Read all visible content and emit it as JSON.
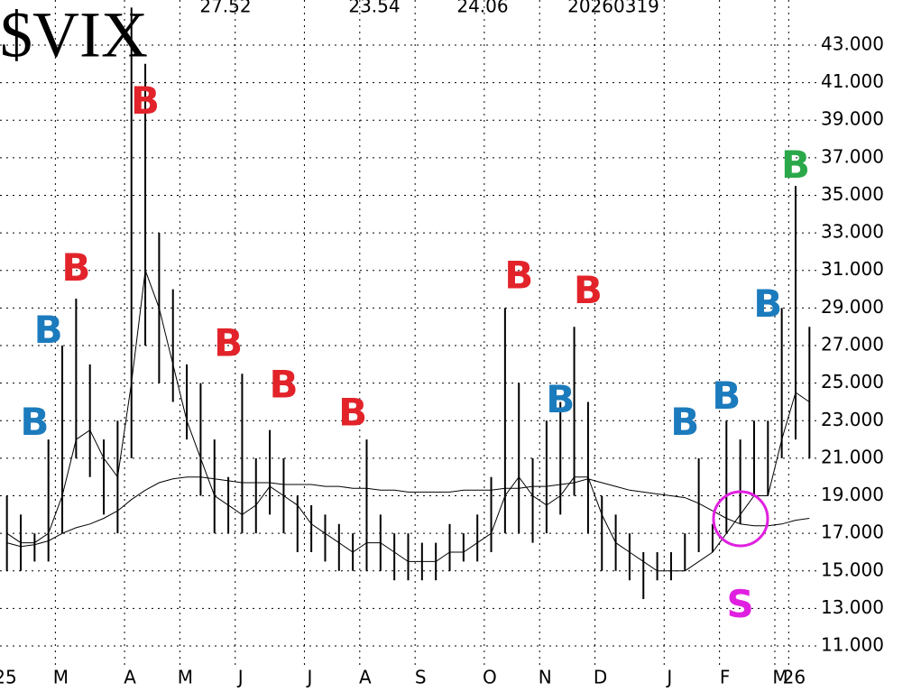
{
  "chart_data": {
    "type": "hilo",
    "title": "$VIX",
    "header": [
      "27.52",
      "23.54",
      "24.06",
      "20260319"
    ],
    "categories": [
      "25",
      null,
      null,
      null,
      "M",
      null,
      null,
      null,
      null,
      "A",
      null,
      null,
      null,
      "M",
      null,
      null,
      null,
      "J",
      null,
      null,
      null,
      null,
      "J",
      null,
      null,
      null,
      "A",
      null,
      null,
      null,
      "S",
      null,
      null,
      null,
      null,
      "O",
      null,
      null,
      null,
      "N",
      null,
      null,
      null,
      "D",
      null,
      null,
      null,
      null,
      "J",
      null,
      null,
      null,
      "F",
      null,
      null,
      null,
      "M",
      "26",
      null
    ],
    "high": [
      19,
      18,
      17,
      22,
      27,
      29.5,
      26,
      22,
      23,
      45,
      42,
      33,
      30,
      26,
      25,
      22,
      20,
      25.5,
      21,
      22.5,
      21,
      19,
      18.5,
      18,
      17.5,
      17,
      22,
      18,
      17,
      17,
      16.5,
      16.5,
      17.5,
      17,
      18,
      20,
      29,
      25,
      21,
      23,
      24,
      28,
      24,
      19,
      18,
      17,
      16,
      16,
      16,
      17,
      21,
      17.5,
      23,
      22,
      23,
      23,
      29,
      35.5,
      28
    ],
    "low": [
      15,
      15,
      15.5,
      15.5,
      17,
      21,
      20,
      18,
      17,
      21,
      27,
      25,
      24,
      22,
      19,
      17,
      17,
      17,
      17,
      18,
      17,
      16,
      16,
      15.5,
      15,
      15,
      15,
      15,
      14.5,
      14.5,
      14.5,
      14.5,
      15,
      15.5,
      15.5,
      16,
      17,
      17,
      16.5,
      17,
      18,
      19,
      17,
      15,
      15,
      14.5,
      13.5,
      14.5,
      14.5,
      15,
      16,
      16,
      17,
      17.5,
      19,
      19,
      21,
      22,
      21
    ],
    "lines": [
      {
        "values": [
          17,
          16.5,
          16.5,
          17,
          19,
          22,
          22.5,
          21,
          20,
          25,
          31,
          29,
          26,
          23,
          21,
          19,
          18.5,
          18,
          18.5,
          19.5,
          19,
          18.5,
          17.5,
          17,
          16.5,
          16,
          16.5,
          16.5,
          16,
          15.5,
          15.5,
          15.5,
          16,
          16,
          16.5,
          17,
          19,
          20,
          19,
          18.5,
          19,
          20,
          20,
          18,
          16.5,
          16,
          15.5,
          15,
          15,
          15,
          15.5,
          16,
          17,
          18,
          19,
          19,
          22,
          24.5,
          24
        ]
      },
      {
        "values": [
          16.5,
          16.3,
          16.4,
          16.6,
          17,
          17.3,
          17.5,
          17.8,
          18.2,
          18.8,
          19.3,
          19.7,
          19.9,
          20,
          20,
          19.9,
          19.8,
          19.7,
          19.7,
          19.7,
          19.6,
          19.6,
          19.6,
          19.5,
          19.5,
          19.4,
          19.4,
          19.3,
          19.3,
          19.2,
          19.2,
          19.2,
          19.2,
          19.3,
          19.3,
          19.3,
          19.4,
          19.4,
          19.5,
          19.5,
          19.6,
          19.7,
          19.9,
          19.7,
          19.5,
          19.3,
          19.2,
          19.1,
          19,
          18.9,
          18.6,
          18.2,
          17.8,
          17.5,
          17.4,
          17.4,
          17.5,
          17.7,
          17.8
        ]
      }
    ],
    "ylim": [
      9.85,
      45.4
    ],
    "yticks": [
      {
        "value": 11,
        "label": "11.000"
      },
      {
        "value": 13,
        "label": "13.000"
      },
      {
        "value": 15,
        "label": "15.000"
      },
      {
        "value": 17,
        "label": "17.000"
      },
      {
        "value": 19,
        "label": "19.000"
      },
      {
        "value": 21,
        "label": "21.000"
      },
      {
        "value": 23,
        "label": "23.000"
      },
      {
        "value": 25,
        "label": "25.000"
      },
      {
        "value": 27,
        "label": "27.000"
      },
      {
        "value": 29,
        "label": "29.000"
      },
      {
        "value": 31,
        "label": "31.000"
      },
      {
        "value": 33,
        "label": "33.000"
      },
      {
        "value": 35,
        "label": "35.000"
      },
      {
        "value": 37,
        "label": "37.000"
      },
      {
        "value": 39,
        "label": "39.000"
      },
      {
        "value": 41,
        "label": "41.000"
      },
      {
        "value": 43,
        "label": "43.000"
      }
    ],
    "grid": true,
    "annotations": [
      {
        "text": "B",
        "color": "#1b7bbd",
        "at": 2,
        "y": 22.8
      },
      {
        "text": "B",
        "color": "#1b7bbd",
        "at": 3,
        "y": 27.7
      },
      {
        "text": "B",
        "color": "#e2232a",
        "at": 5,
        "y": 31
      },
      {
        "text": "B",
        "color": "#e2232a",
        "at": 10,
        "y": 39.9
      },
      {
        "text": "B",
        "color": "#e2232a",
        "at": 16,
        "y": 27
      },
      {
        "text": "B",
        "color": "#e2232a",
        "at": 20,
        "y": 24.8
      },
      {
        "text": "B",
        "color": "#e2232a",
        "at": 25,
        "y": 23.3
      },
      {
        "text": "B",
        "color": "#e2232a",
        "at": 37,
        "y": 30.6
      },
      {
        "text": "B",
        "color": "#1b7bbd",
        "at": 40,
        "y": 24
      },
      {
        "text": "B",
        "color": "#e2232a",
        "at": 42,
        "y": 29.8
      },
      {
        "text": "B",
        "color": "#1b7bbd",
        "at": 49,
        "y": 22.8
      },
      {
        "text": "B",
        "color": "#1b7bbd",
        "at": 52,
        "y": 24.2
      },
      {
        "text": "B",
        "color": "#1b7bbd",
        "at": 55,
        "y": 29.1
      },
      {
        "text": "B",
        "color": "#2aa84a",
        "at": 57,
        "y": 36.5
      },
      {
        "text": "S",
        "color": "#e020e0",
        "at": 53,
        "y": 13.1
      }
    ]
  }
}
